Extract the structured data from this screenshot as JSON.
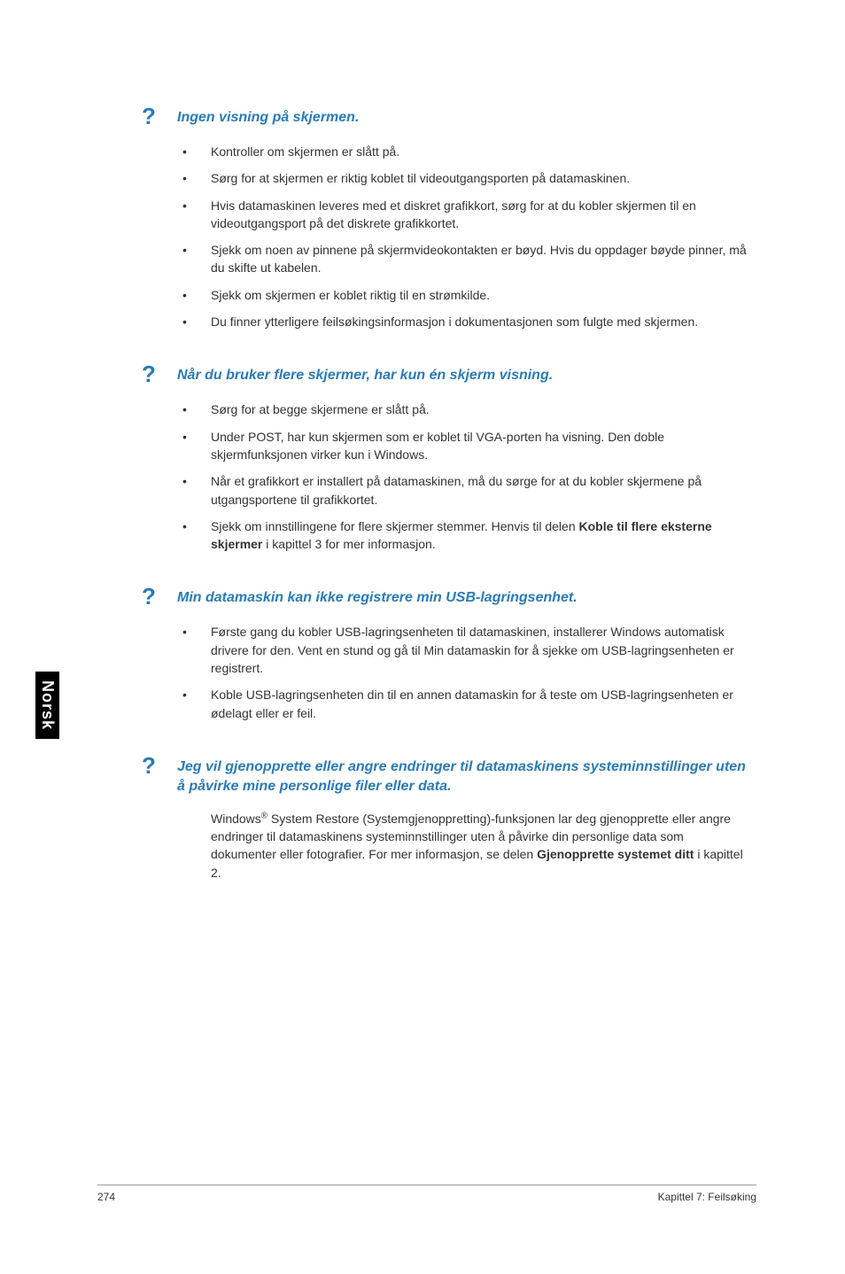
{
  "sideTab": "Norsk",
  "sections": [
    {
      "title": "Ingen visning på skjermen.",
      "type": "bullets",
      "items": [
        {
          "text": "Kontroller om skjermen er slått på."
        },
        {
          "text": "Sørg for at skjermen er riktig koblet til videoutgangsporten på datamaskinen."
        },
        {
          "text": "Hvis datamaskinen leveres med et diskret grafikkort, sørg for at du kobler skjermen til en videoutgangsport på det diskrete grafikkortet."
        },
        {
          "text": "Sjekk om noen av pinnene på skjermvideokontakten er bøyd. Hvis du oppdager bøyde pinner, må du skifte ut kabelen."
        },
        {
          "text": "Sjekk om skjermen er koblet riktig til en strømkilde."
        },
        {
          "text": "Du finner ytterligere feilsøkingsinformasjon i dokumentasjonen som fulgte med skjermen."
        }
      ]
    },
    {
      "title": "Når du bruker flere skjermer, har kun én skjerm visning.",
      "type": "bullets",
      "items": [
        {
          "text": "Sørg for at begge skjermene er slått på."
        },
        {
          "text": "Under POST, har kun skjermen som er koblet til VGA-porten ha visning. Den doble skjermfunksjonen virker kun i Windows."
        },
        {
          "text": "Når et grafikkort er installert på datamaskinen, må du sørge for at du kobler skjermene på utgangsportene til grafikkortet."
        },
        {
          "html": "Sjekk om innstillingene for flere skjermer stemmer. Henvis til delen <b>Koble til flere eksterne skjermer</b> i kapittel 3 for mer informasjon."
        }
      ]
    },
    {
      "title": "Min datamaskin kan ikke registrere min USB-lagringsenhet.",
      "type": "bullets",
      "items": [
        {
          "text": "Første gang du kobler USB-lagringsenheten til datamaskinen, installerer Windows automatisk drivere for den. Vent en stund og gå til Min datamaskin for å sjekke om USB-lagringsenheten er registrert."
        },
        {
          "text": "Koble USB-lagringsenheten din til en annen datamaskin for å teste om USB-lagringsenheten er ødelagt eller er feil."
        }
      ]
    },
    {
      "title": "Jeg vil gjenopprette eller angre endringer til datamaskinens systeminnstillinger uten å påvirke mine personlige filer eller data.",
      "type": "paragraph",
      "paragraphHtml": "Windows<sup>®</sup> System Restore (Systemgjenoppretting)-funksjonen lar deg gjenopprette eller angre endringer til datamaskinens systeminnstillinger uten å påvirke din personlige data som dokumenter eller fotografier. For mer informasjon, se delen <b>Gjenopprette systemet ditt</b> i kapittel 2."
    }
  ],
  "footer": {
    "pageNum": "274",
    "chapter": "Kapittel 7: Feilsøking"
  },
  "style": {
    "accent": "#2a7bb8",
    "text": "#333333",
    "bg": "#ffffff",
    "tabBg": "#000000",
    "tabFg": "#ffffff",
    "titleFont": 16,
    "bodyFont": 14,
    "footerFont": 12
  }
}
